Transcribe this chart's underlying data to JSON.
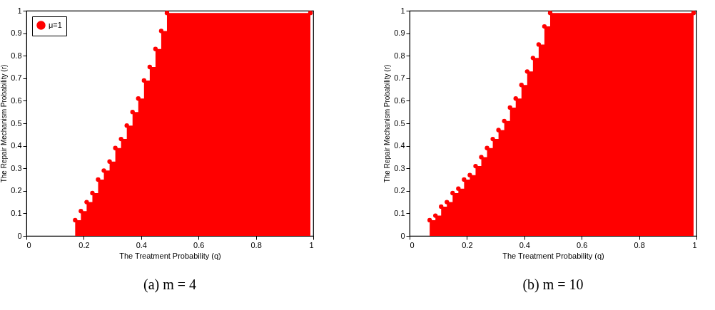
{
  "chart_data": [
    {
      "type": "area",
      "title": "(a) m = 4",
      "xlabel": "The Treatment Probability (q)",
      "ylabel": "The Repair Mechanism Probability (r)",
      "series": [
        {
          "name": "μ=1",
          "color": "#ff0000",
          "x": [
            0.17,
            0.19,
            0.21,
            0.23,
            0.25,
            0.27,
            0.29,
            0.31,
            0.33,
            0.35,
            0.37,
            0.39,
            0.41,
            0.43,
            0.45,
            0.47,
            0.49,
            0.99
          ],
          "values": [
            0.07,
            0.11,
            0.15,
            0.19,
            0.25,
            0.29,
            0.33,
            0.39,
            0.43,
            0.49,
            0.55,
            0.61,
            0.69,
            0.75,
            0.83,
            0.91,
            0.99,
            0.99
          ]
        }
      ],
      "xlim": [
        0,
        1
      ],
      "xticks": [
        0,
        0.2,
        0.4,
        0.6,
        0.8,
        1
      ],
      "ylim": [
        0,
        1
      ],
      "yticks": [
        0,
        0.1,
        0.2,
        0.3,
        0.4,
        0.5,
        0.6,
        0.7,
        0.8,
        0.9,
        1
      ],
      "legend": "top left",
      "marker": "circle"
    },
    {
      "type": "area",
      "title": "(b) m = 10",
      "xlabel": "The Treatment Probability (q)",
      "ylabel": "The Repair Mechanism Probability (r)",
      "series": [
        {
          "name": "μ=1",
          "color": "#ff0000",
          "x": [
            0.07,
            0.09,
            0.11,
            0.13,
            0.15,
            0.17,
            0.19,
            0.21,
            0.23,
            0.25,
            0.27,
            0.29,
            0.31,
            0.33,
            0.35,
            0.37,
            0.39,
            0.41,
            0.43,
            0.45,
            0.47,
            0.49,
            0.99
          ],
          "values": [
            0.07,
            0.09,
            0.13,
            0.15,
            0.19,
            0.21,
            0.25,
            0.27,
            0.31,
            0.35,
            0.39,
            0.43,
            0.47,
            0.51,
            0.57,
            0.61,
            0.67,
            0.73,
            0.79,
            0.85,
            0.93,
            0.99,
            0.99
          ]
        }
      ],
      "xlim": [
        0,
        1
      ],
      "xticks": [
        0,
        0.2,
        0.4,
        0.6,
        0.8,
        1
      ],
      "ylim": [
        0,
        1
      ],
      "yticks": [
        0,
        0.1,
        0.2,
        0.3,
        0.4,
        0.5,
        0.6,
        0.7,
        0.8,
        0.9,
        1
      ],
      "legend": "top left",
      "marker": "circle"
    }
  ]
}
